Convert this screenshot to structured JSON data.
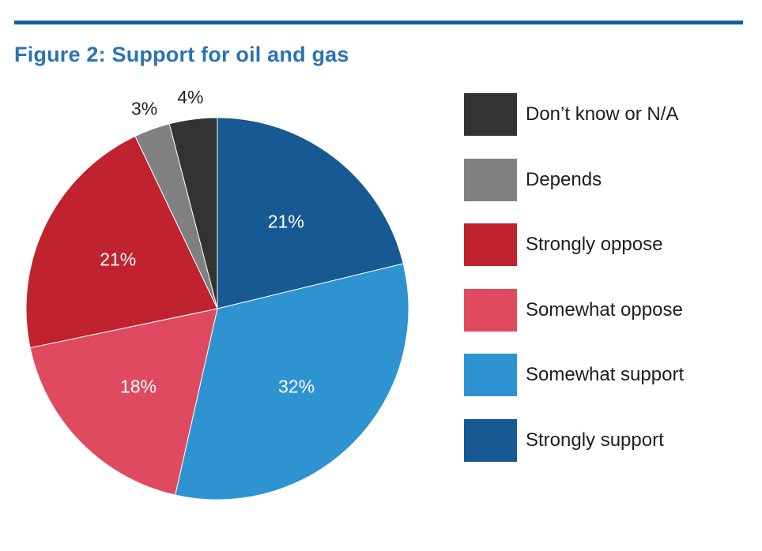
{
  "figure": {
    "title": "Figure 2: Support for oil and gas"
  },
  "colors": {
    "rule": "#1a5e9e",
    "title": "#2a73b5"
  },
  "chart_data": {
    "type": "pie",
    "title": "Figure 2: Support for oil and gas",
    "legend_position": "right",
    "slices": [
      {
        "label": "Strongly support",
        "value": 21,
        "display": "21%",
        "color": "#175a93",
        "label_position": "inside"
      },
      {
        "label": "Somewhat support",
        "value": 32,
        "display": "32%",
        "color": "#2e93d1",
        "label_position": "inside"
      },
      {
        "label": "Somewhat oppose",
        "value": 18,
        "display": "18%",
        "color": "#df4a60",
        "label_position": "inside"
      },
      {
        "label": "Strongly oppose",
        "value": 21,
        "display": "21%",
        "color": "#c0222f",
        "label_position": "inside"
      },
      {
        "label": "Depends",
        "value": 3,
        "display": "3%",
        "color": "#808080",
        "label_position": "outside"
      },
      {
        "label": "Don’t know or N/A",
        "value": 4,
        "display": "4%",
        "color": "#333333",
        "label_position": "outside"
      }
    ],
    "legend_order": [
      "Don’t know or N/A",
      "Depends",
      "Strongly oppose",
      "Somewhat oppose",
      "Somewhat support",
      "Strongly support"
    ]
  }
}
